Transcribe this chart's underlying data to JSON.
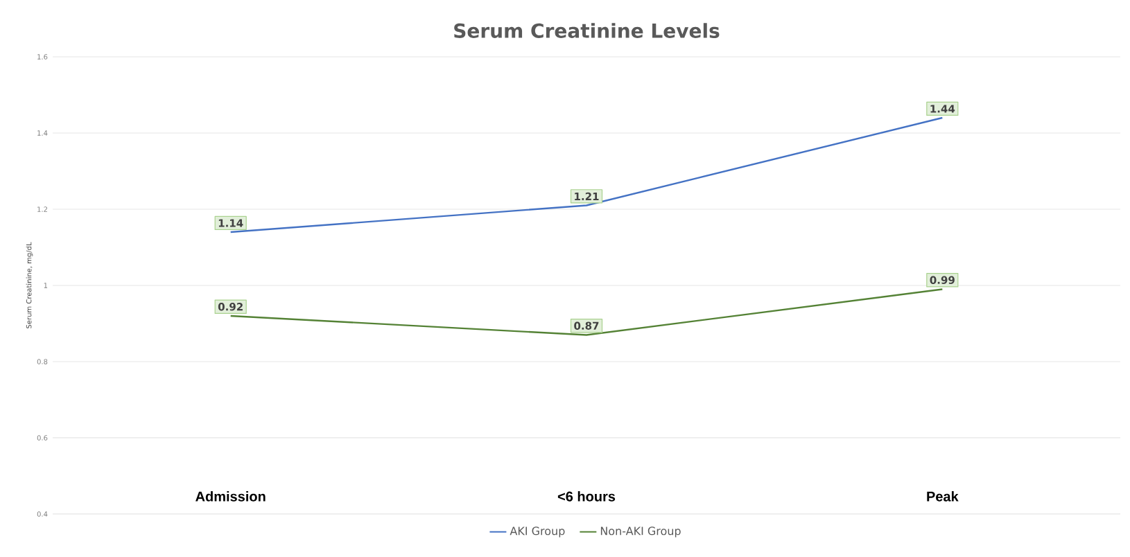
{
  "chart_data": {
    "type": "line",
    "title": "Serum Creatinine Levels",
    "ylabel": "Serum Creatinine, mg/dL",
    "categories": [
      "Admission",
      "<6 hours",
      "Peak"
    ],
    "series": [
      {
        "name": "AKI Group",
        "color": "#4472c4",
        "values": [
          1.14,
          1.21,
          1.44
        ]
      },
      {
        "name": "Non-AKI Group",
        "color": "#548235",
        "values": [
          0.92,
          0.87,
          0.99
        ]
      }
    ],
    "ylim": [
      0.4,
      1.6
    ],
    "yticks": [
      0.4,
      0.6,
      0.8,
      1,
      1.2,
      1.4,
      1.6
    ],
    "grid": "y",
    "legend": "bottom",
    "data_labels": true,
    "marker": "none",
    "line_style": "solid"
  }
}
